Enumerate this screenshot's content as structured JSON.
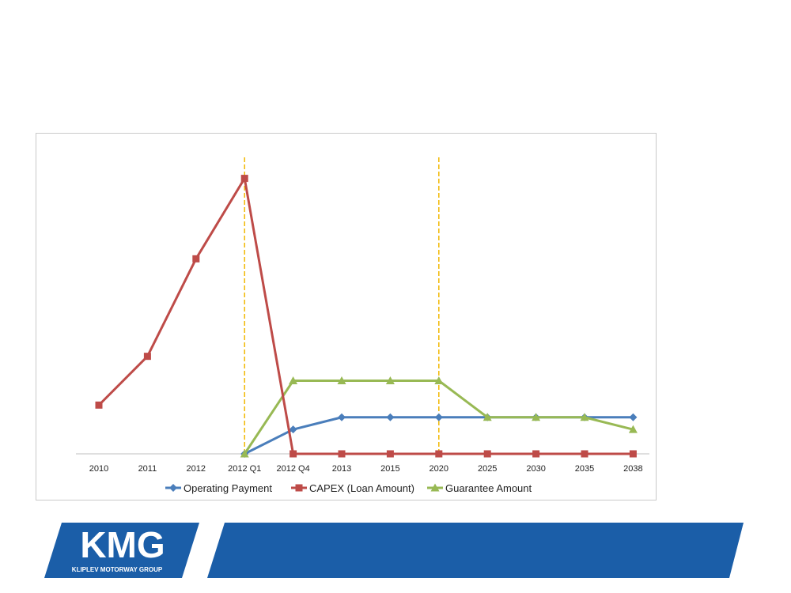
{
  "chart_data": {
    "type": "line",
    "categories": [
      "2010",
      "2011",
      "2012",
      "2012 Q1",
      "2012 Q4",
      "2013",
      "2015",
      "2020",
      "2025",
      "2030",
      "2035",
      "2038"
    ],
    "series": [
      {
        "name": "Operating Payment",
        "color": "#4a7ebb",
        "marker": "diamond",
        "values": [
          null,
          null,
          null,
          0,
          10,
          15,
          15,
          15,
          15,
          15,
          15,
          15
        ]
      },
      {
        "name": "CAPEX (Loan Amount)",
        "color": "#be4b48",
        "marker": "square",
        "values": [
          20,
          40,
          80,
          113,
          0,
          0,
          0,
          0,
          0,
          0,
          0,
          0
        ]
      },
      {
        "name": "Guarantee Amount",
        "color": "#98b954",
        "marker": "triangle",
        "values": [
          null,
          null,
          null,
          0,
          30,
          30,
          30,
          30,
          15,
          15,
          15,
          10
        ]
      }
    ],
    "ylim": [
      0,
      120
    ],
    "grid": false,
    "legend_position": "bottom",
    "reference_lines": [
      {
        "category": "2012 Q1",
        "color": "#f2b700",
        "style": "dashed"
      },
      {
        "category": "2020",
        "color": "#f2b700",
        "style": "dashed"
      }
    ]
  },
  "footer": {
    "logo_text": "KMG",
    "logo_subtext": "KLIPLEV MOTORWAY GROUP",
    "brand_color": "#1b5ea8"
  }
}
